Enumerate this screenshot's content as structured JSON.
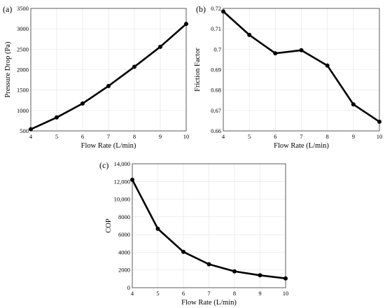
{
  "chart_data": [
    {
      "type": "line",
      "panel_label": "(a)",
      "xlabel": "Flow Rate (L/min)",
      "ylabel": "Pressure Drop (Pa)",
      "xlim": [
        4,
        10
      ],
      "ylim": [
        500,
        3500
      ],
      "x_ticks": [
        4,
        5,
        6,
        7,
        8,
        9,
        10
      ],
      "x_tick_labels": [
        "4",
        "5",
        "6",
        "7",
        "8",
        "9",
        "10"
      ],
      "y_ticks": [
        500,
        1000,
        1500,
        2000,
        2500,
        3000,
        3500
      ],
      "y_tick_labels": [
        "500",
        "1000",
        "1500",
        "2000",
        "2500",
        "3000",
        "3500"
      ],
      "grid": true,
      "series": [
        {
          "x": [
            4,
            5,
            6,
            7,
            8,
            9,
            10
          ],
          "values": [
            540,
            830,
            1170,
            1600,
            2070,
            2560,
            3120
          ]
        }
      ]
    },
    {
      "type": "line",
      "panel_label": "(b)",
      "xlabel": "Flow Rate (L/min)",
      "ylabel": "Friction Factor",
      "xlim": [
        4,
        10
      ],
      "ylim": [
        0.66,
        0.72
      ],
      "x_ticks": [
        4,
        5,
        6,
        7,
        8,
        9,
        10
      ],
      "x_tick_labels": [
        "4",
        "5",
        "6",
        "7",
        "8",
        "9",
        "10"
      ],
      "y_ticks": [
        0.66,
        0.67,
        0.68,
        0.69,
        0.7,
        0.71,
        0.72
      ],
      "y_tick_labels": [
        "0.66",
        "0.67",
        "0.68",
        "0.69",
        "0.7",
        "0.71",
        "0.72"
      ],
      "grid": true,
      "series": [
        {
          "x": [
            4,
            5,
            6,
            7,
            8,
            9,
            10
          ],
          "values": [
            0.7185,
            0.707,
            0.698,
            0.6995,
            0.692,
            0.673,
            0.6645
          ]
        }
      ]
    },
    {
      "type": "line",
      "panel_label": "(c)",
      "xlabel": "Flow Rate (L/min)",
      "ylabel": "COP",
      "xlim": [
        4,
        10
      ],
      "ylim": [
        0,
        14000
      ],
      "x_ticks": [
        4,
        5,
        6,
        7,
        8,
        9,
        10
      ],
      "x_tick_labels": [
        "4",
        "5",
        "6",
        "7",
        "8",
        "9",
        "10"
      ],
      "y_ticks": [
        0,
        2000,
        4000,
        6000,
        8000,
        10000,
        12000,
        14000
      ],
      "y_tick_labels": [
        "0",
        "2000",
        "4000",
        "6000",
        "8000",
        "10,000",
        "12,000",
        "14,000"
      ],
      "grid": true,
      "series": [
        {
          "x": [
            4,
            5,
            6,
            7,
            8,
            9,
            10
          ],
          "values": [
            12200,
            6650,
            4050,
            2650,
            1850,
            1400,
            1050
          ]
        }
      ]
    }
  ]
}
